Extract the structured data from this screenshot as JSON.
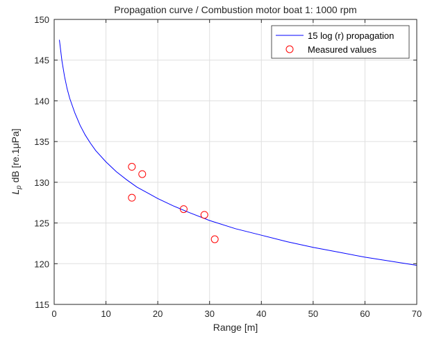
{
  "chart_data": {
    "type": "line",
    "title": "Propagation curve / Combustion motor boat 1: 1000 rpm",
    "xlabel": "Range [m]",
    "ylabel_symbol": "L",
    "ylabel_subscript": "p",
    "ylabel_rest": " dB [re.1μPa]",
    "xlim": [
      0,
      70
    ],
    "ylim": [
      115,
      150
    ],
    "xticks": [
      0,
      10,
      20,
      30,
      40,
      50,
      60,
      70
    ],
    "yticks": [
      115,
      120,
      125,
      130,
      135,
      140,
      145,
      150
    ],
    "grid": true,
    "legend_position": "top-right",
    "series": [
      {
        "name": "15 log (r) propagation",
        "kind": "line",
        "color": "#0000ff",
        "x": [
          1,
          1.5,
          2,
          2.5,
          3,
          4,
          5,
          6,
          7,
          8,
          10,
          12,
          14,
          16,
          18,
          20,
          23,
          26,
          30,
          35,
          40,
          45,
          50,
          55,
          60,
          65,
          70
        ],
        "y": [
          147.5,
          144.9,
          143.0,
          141.5,
          140.3,
          138.5,
          137.0,
          135.8,
          134.8,
          133.9,
          132.5,
          131.3,
          130.3,
          129.4,
          128.7,
          128.0,
          127.1,
          126.3,
          125.3,
          124.3,
          123.5,
          122.7,
          122.0,
          121.4,
          120.8,
          120.3,
          119.8
        ]
      },
      {
        "name": "Measured values",
        "kind": "scatter",
        "color": "#ff0000",
        "x": [
          15,
          15,
          17,
          25,
          29,
          31
        ],
        "y": [
          131.9,
          128.1,
          131.0,
          126.7,
          126.0,
          123.0
        ]
      }
    ]
  }
}
